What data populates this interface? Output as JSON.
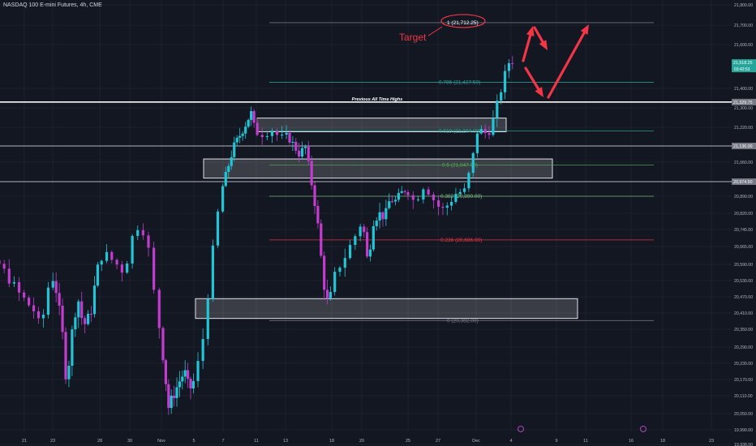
{
  "header": {
    "symbol_title": "NASDAQ 100 E-mini Futures, 4h, CME"
  },
  "chart_data": {
    "type": "candlestick",
    "title": "NASDAQ 100 E-mini Futures, 4h, CME",
    "ylim": [
      19865,
      21835
    ],
    "y_ticks": [
      {
        "v": 21800.0,
        "label": "21,800.00"
      },
      {
        "v": 21700.0,
        "label": "21,700.00"
      },
      {
        "v": 21600.0,
        "label": "21,600.00"
      },
      {
        "v": 21400.0,
        "label": "21,400.00"
      },
      {
        "v": 21300.0,
        "label": "21,300.00"
      },
      {
        "v": 21220.0,
        "label": "21,220.00"
      },
      {
        "v": 21060.0,
        "label": "21,060.00"
      },
      {
        "v": 20890.0,
        "label": "20,890.00"
      },
      {
        "v": 20820.0,
        "label": "20,820.00"
      },
      {
        "v": 20745.0,
        "label": "20,745.00"
      },
      {
        "v": 20665.0,
        "label": "20,665.00"
      },
      {
        "v": 20590.0,
        "label": "20,590.00"
      },
      {
        "v": 20530.0,
        "label": "20,530.00"
      },
      {
        "v": 20470.0,
        "label": "20,470.00"
      },
      {
        "v": 20410.0,
        "label": "20,410.00"
      },
      {
        "v": 20350.0,
        "label": "20,350.00"
      },
      {
        "v": 20290.0,
        "label": "20,290.00"
      },
      {
        "v": 20230.0,
        "label": "20,230.00"
      },
      {
        "v": 20170.0,
        "label": "20,170.00"
      },
      {
        "v": 20110.0,
        "label": "20,110.00"
      },
      {
        "v": 20050.0,
        "label": "20,050.00"
      },
      {
        "v": 19990.0,
        "label": "19,990.00"
      },
      {
        "v": 19938.0,
        "label": "19,938.00"
      },
      {
        "v": 19885.0,
        "label": "19,885.00"
      }
    ],
    "price_badges": [
      {
        "v": 21518.25,
        "label": "21,518.25",
        "sub": "03:42:53",
        "color": "#26a69a"
      },
      {
        "v": 21329.75,
        "label": "21,329.75",
        "color": "#787b86"
      },
      {
        "v": 21136.0,
        "label": "21,136.00",
        "color": "#787b86"
      },
      {
        "v": 20974.5,
        "label": "20,974.50",
        "color": "#787b86"
      }
    ],
    "x_ticks": [
      {
        "d": 21,
        "label": "21"
      },
      {
        "d": 23,
        "label": "23"
      },
      {
        "d": 28,
        "label": "28"
      },
      {
        "d": 30,
        "label": "30"
      },
      {
        "d": 32,
        "label": "Nov"
      },
      {
        "d": 36,
        "label": "5"
      },
      {
        "d": 38,
        "label": "7"
      },
      {
        "d": 42,
        "label": "11"
      },
      {
        "d": 44,
        "label": "13"
      },
      {
        "d": 49,
        "label": "18"
      },
      {
        "d": 51,
        "label": "20"
      },
      {
        "d": 56,
        "label": "25"
      },
      {
        "d": 58,
        "label": "27"
      },
      {
        "d": 61,
        "label": "Dec"
      },
      {
        "d": 64,
        "label": "4"
      },
      {
        "d": 69,
        "label": "9"
      },
      {
        "d": 71,
        "label": "11"
      },
      {
        "d": 76,
        "label": "16"
      },
      {
        "d": 78,
        "label": "18"
      },
      {
        "d": 83,
        "label": "23"
      }
    ],
    "fib_levels": [
      {
        "v": 21712.25,
        "label": "1 (21,712.25)",
        "color": "#787b86"
      },
      {
        "v": 21427.5,
        "label": "0.786 (21,427.50)",
        "color": "#26a69a"
      },
      {
        "v": 21204.0,
        "label": "0.618 (21,204.00)",
        "color": "#26a69a"
      },
      {
        "v": 21047.0,
        "label": "0.5 (21,047.00)",
        "color": "#4caf50"
      },
      {
        "v": 20890.0,
        "label": "0.382 (20,890.00)",
        "color": "#81c784"
      },
      {
        "v": 20696.0,
        "label": "0.236 (20,696.00)",
        "color": "#f23645"
      },
      {
        "v": 20382.0,
        "label": "0 (20,382.00)",
        "color": "#787b86"
      }
    ],
    "horizontal_lines": [
      {
        "v": 21329.75,
        "label": "Previous All Time Highs",
        "color": "#ffffff"
      },
      {
        "v": 21136.0,
        "label": "",
        "color": "#b2b5be"
      },
      {
        "v": 20974.5,
        "label": "",
        "color": "#b2b5be"
      }
    ],
    "zones": [
      {
        "v_top": 21258,
        "v_bottom": 21200
      },
      {
        "v_top": 21075,
        "v_bottom": 20990
      },
      {
        "v_top": 20463,
        "v_bottom": 20390
      }
    ],
    "annotations": [
      {
        "text": "Target",
        "color": "#f23645"
      }
    ],
    "colors": {
      "up": "#22c5d6",
      "down": "#c13ccf",
      "background": "#131722",
      "arrow": "#f23645"
    }
  }
}
